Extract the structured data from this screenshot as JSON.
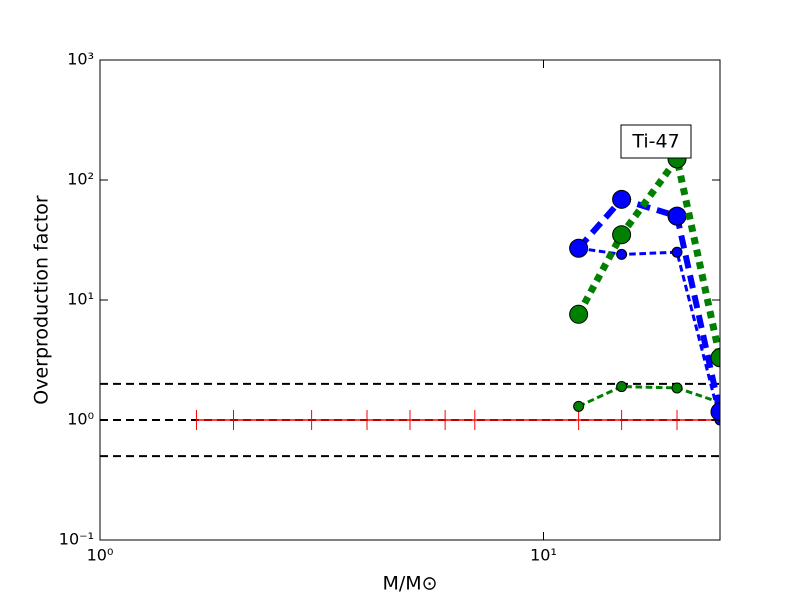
{
  "chart_data": {
    "type": "line",
    "xlabel": "M/M⊙",
    "ylabel": "Overproduction factor",
    "annotation": "Ti-47",
    "log_x": true,
    "log_y": true,
    "xlim": [
      1,
      25
    ],
    "ylim": [
      0.1,
      1000
    ],
    "xticks": [
      {
        "value": 1,
        "label": "10⁰"
      },
      {
        "value": 10,
        "label": "10¹"
      }
    ],
    "yticks": [
      {
        "value": 0.1,
        "label": "10⁻¹"
      },
      {
        "value": 1,
        "label": "10⁰"
      },
      {
        "value": 10,
        "label": "10¹"
      },
      {
        "value": 100,
        "label": "10²"
      },
      {
        "value": 1000,
        "label": "10³"
      }
    ],
    "reference_lines": [
      2,
      1,
      0.5
    ],
    "series": [
      {
        "color": "#ff0000",
        "style": "solid",
        "width": 1.5,
        "marker": "tick",
        "x": [
          1.65,
          2,
          3,
          4,
          5,
          6,
          7,
          12,
          15,
          20,
          25
        ],
        "values": [
          1,
          1,
          1,
          1,
          1,
          1,
          1,
          1,
          1,
          1,
          1
        ]
      },
      {
        "color": "#0000ff",
        "style": "dashed",
        "width": 3,
        "marker": 5,
        "x": [
          12,
          15,
          20,
          25
        ],
        "values": [
          27,
          24,
          25,
          1.0
        ]
      },
      {
        "color": "#008000",
        "style": "dashed",
        "width": 3,
        "marker": 5,
        "x": [
          12,
          15,
          20,
          25
        ],
        "values": [
          1.3,
          1.9,
          1.85,
          1.4
        ]
      },
      {
        "color": "#0000ff",
        "style": "dashed",
        "width": 6,
        "marker": 9,
        "x": [
          12,
          15,
          20,
          25
        ],
        "values": [
          27,
          69,
          50,
          1.17
        ]
      },
      {
        "color": "#008000",
        "style": "dotted",
        "width": 7,
        "marker": 9,
        "x": [
          12,
          15,
          20,
          25
        ],
        "values": [
          7.6,
          35,
          150,
          3.3
        ]
      }
    ]
  }
}
